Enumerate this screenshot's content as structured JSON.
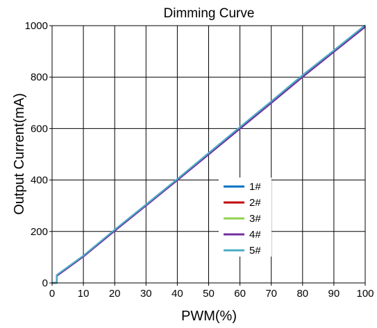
{
  "chart_data": {
    "type": "line",
    "title": "Dimming Curve",
    "xlabel": "PWM(%)",
    "ylabel": "Output Current(mA)",
    "xlim": [
      0,
      100
    ],
    "ylim": [
      0,
      1000
    ],
    "xticks": [
      0,
      10,
      20,
      30,
      40,
      50,
      60,
      70,
      80,
      90,
      100
    ],
    "yticks": [
      0,
      200,
      400,
      600,
      800,
      1000
    ],
    "grid": true,
    "legend_position": "center-right",
    "series": [
      {
        "name": "1#",
        "color": "#0070C0",
        "x": [
          0,
          1,
          1.5,
          1.5,
          10,
          20,
          30,
          40,
          50,
          60,
          70,
          80,
          90,
          100
        ],
        "y": [
          0,
          0,
          0,
          30,
          105,
          205,
          303,
          402,
          502,
          603,
          702,
          805,
          902,
          1000
        ]
      },
      {
        "name": "2#",
        "color": "#C00000",
        "x": [
          0,
          1,
          1.5,
          1.5,
          10,
          20,
          30,
          40,
          50,
          60,
          70,
          80,
          90,
          100
        ],
        "y": [
          0,
          0,
          0,
          28,
          103,
          203,
          302,
          400,
          500,
          601,
          700,
          802,
          900,
          998
        ]
      },
      {
        "name": "3#",
        "color": "#92D050",
        "x": [
          0,
          1,
          1.5,
          1.5,
          10,
          20,
          30,
          40,
          50,
          60,
          70,
          80,
          90,
          100
        ],
        "y": [
          0,
          0,
          0,
          29,
          104,
          204,
          302,
          401,
          501,
          602,
          701,
          803,
          901,
          999
        ]
      },
      {
        "name": "4#",
        "color": "#7030A0",
        "x": [
          0,
          1,
          1.5,
          1.5,
          10,
          20,
          30,
          40,
          50,
          60,
          70,
          80,
          90,
          100
        ],
        "y": [
          0,
          0,
          0,
          27,
          102,
          202,
          300,
          399,
          499,
          599,
          699,
          800,
          898,
          995
        ]
      },
      {
        "name": "5#",
        "color": "#4BACC6",
        "x": [
          0,
          1,
          1.5,
          1.5,
          10,
          20,
          30,
          40,
          50,
          60,
          70,
          80,
          90,
          100
        ],
        "y": [
          0,
          0,
          0,
          31,
          106,
          207,
          305,
          404,
          505,
          606,
          706,
          808,
          904,
          1002
        ]
      }
    ]
  }
}
